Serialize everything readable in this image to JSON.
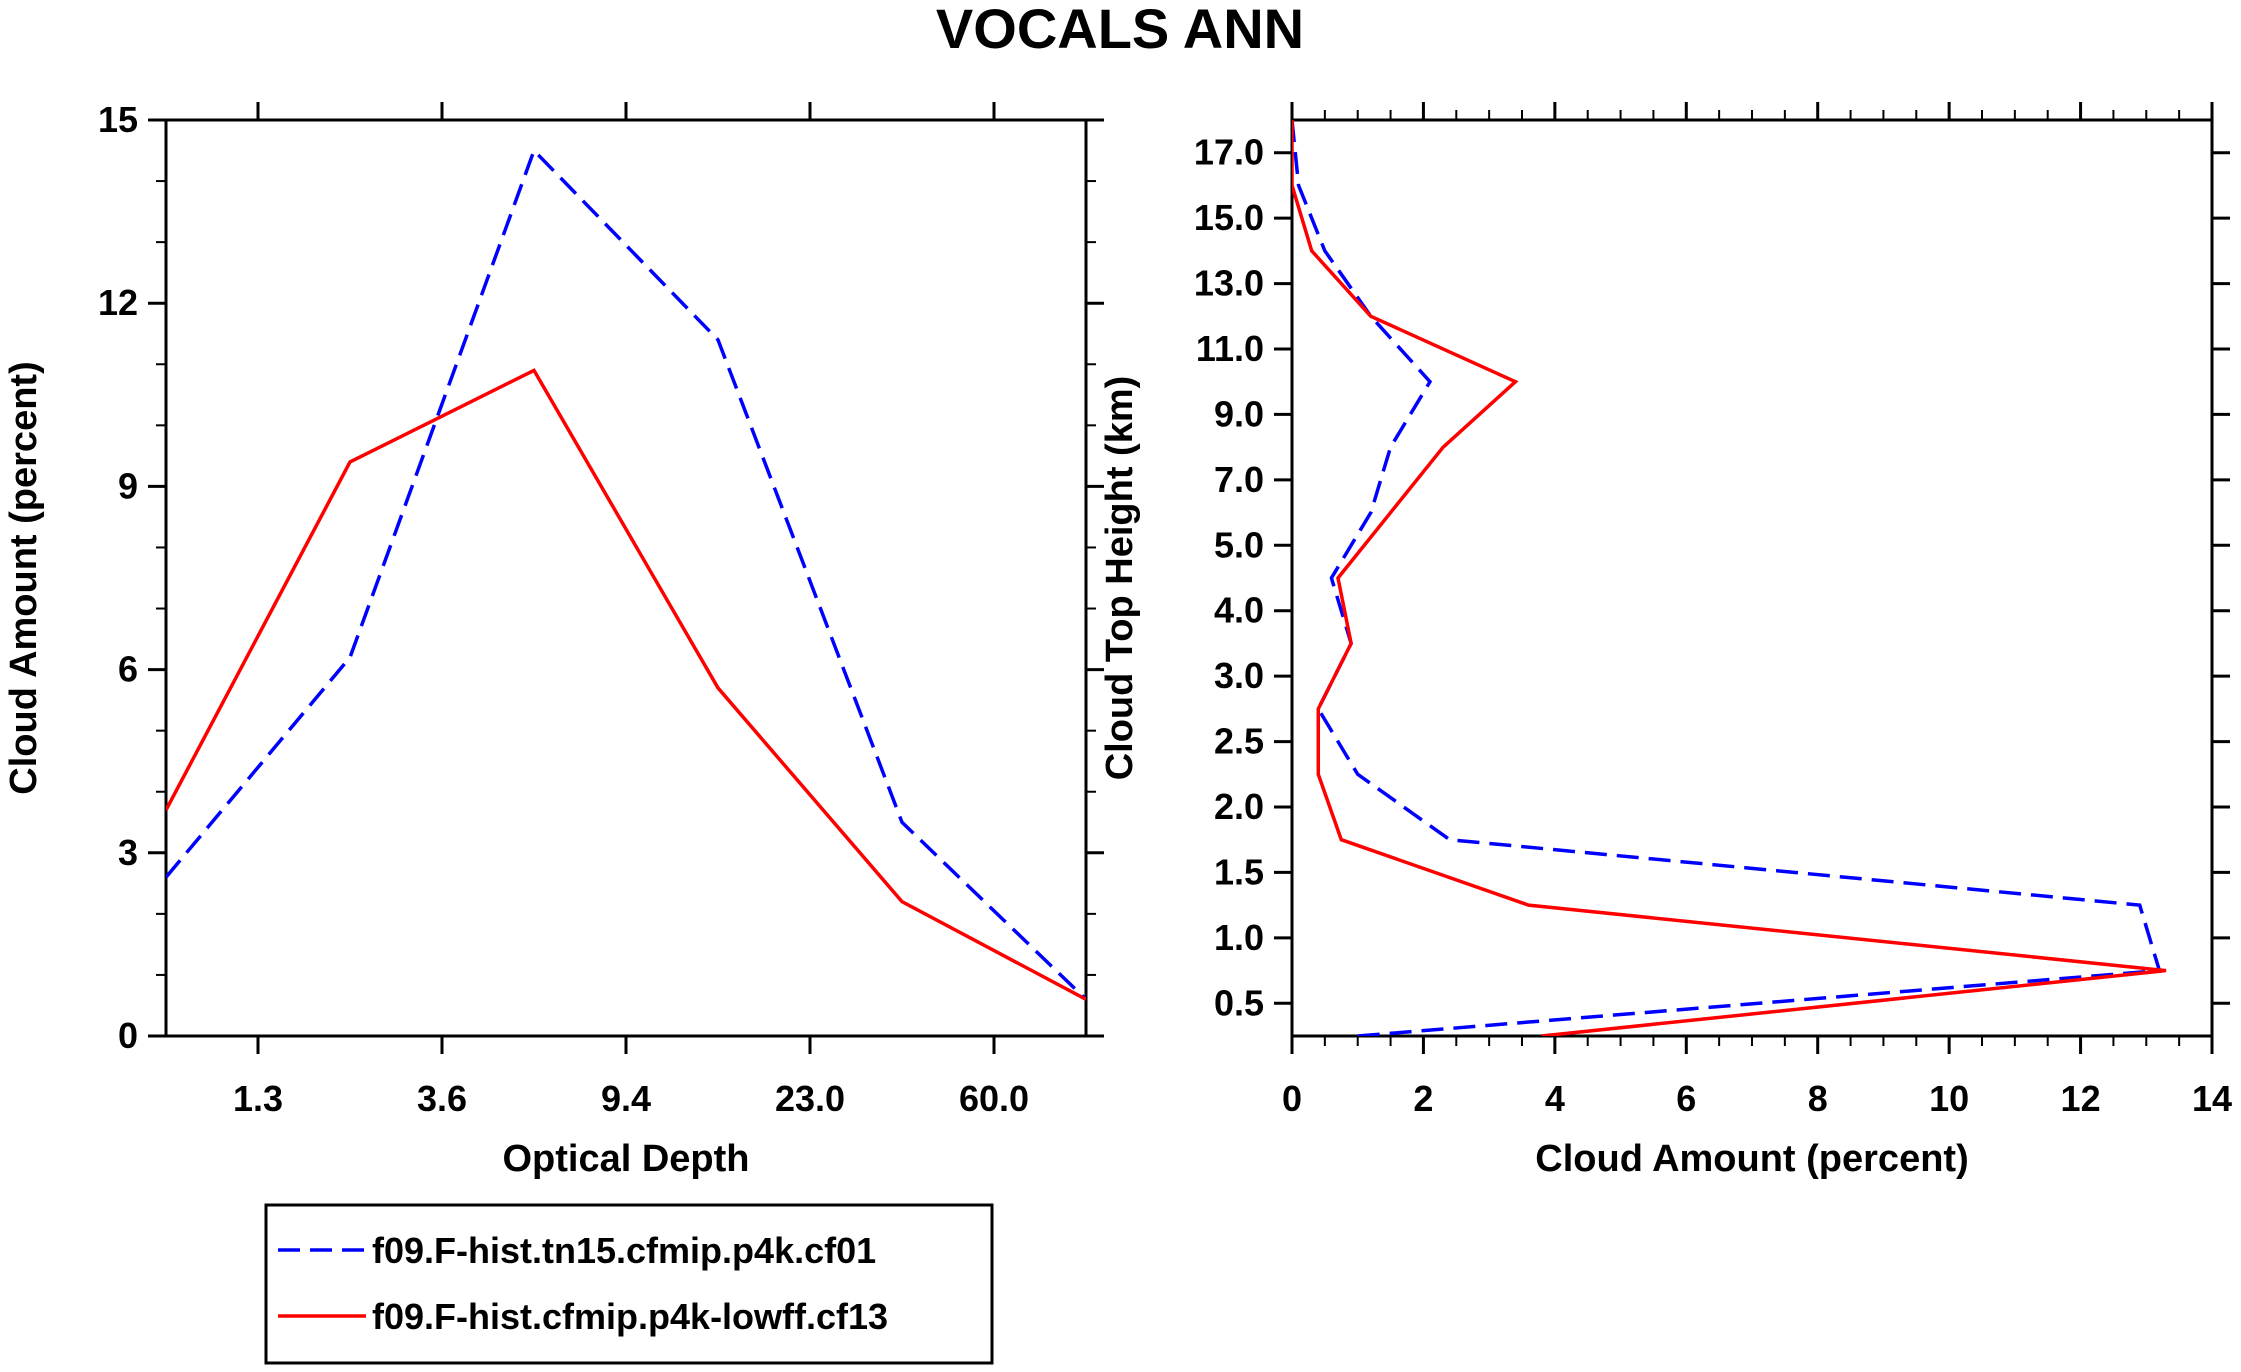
{
  "title": "VOCALS ANN",
  "colors": {
    "series1": "#0000ff",
    "series2": "#ff0000",
    "axis": "#000000"
  },
  "legend": {
    "entries": [
      {
        "label": "f09.F-hist.tn15.cfmip.p4k.cf01",
        "color": "#0000ff",
        "style": "dashed"
      },
      {
        "label": "f09.F-hist.cfmip.p4k-lowff.cf13",
        "color": "#ff0000",
        "style": "solid"
      }
    ]
  },
  "chart_data": [
    {
      "type": "line",
      "xlabel": "Optical Depth",
      "ylabel": "Cloud Amount (percent)",
      "x": [
        0,
        1,
        2,
        3,
        4,
        5
      ],
      "xlim": [
        0,
        5
      ],
      "xticks": [
        0.5,
        1.5,
        2.5,
        3.5,
        4.5
      ],
      "xtick_labels": [
        "1.3",
        "3.6",
        "9.4",
        "23.0",
        "60.0"
      ],
      "ylim": [
        0,
        15
      ],
      "yticks": [
        0,
        3,
        6,
        9,
        12,
        15
      ],
      "ytick_labels": [
        "0",
        "3",
        "6",
        "9",
        "12",
        "15"
      ],
      "series": [
        {
          "name": "f09.F-hist.tn15.cfmip.p4k.cf01",
          "style": "dashed",
          "values": [
            2.6,
            6.2,
            14.5,
            11.4,
            3.5,
            0.6
          ]
        },
        {
          "name": "f09.F-hist.cfmip.p4k-lowff.cf13",
          "style": "solid",
          "values": [
            3.7,
            9.4,
            10.9,
            5.7,
            2.2,
            0.6
          ]
        }
      ]
    },
    {
      "type": "line",
      "xlabel": "Cloud Amount (percent)",
      "ylabel": "Cloud Top Height (km)",
      "xlim": [
        0,
        14
      ],
      "xticks": [
        0,
        2,
        4,
        6,
        8,
        10,
        12,
        14
      ],
      "xtick_labels": [
        "0",
        "2",
        "4",
        "6",
        "8",
        "10",
        "12",
        "14"
      ],
      "ylim": [
        0,
        14
      ],
      "y": [
        0,
        1,
        2,
        3,
        4,
        5,
        6,
        7,
        8,
        9,
        10,
        11,
        12,
        13,
        14
      ],
      "ytick_positions": [
        0.5,
        1.5,
        2.5,
        3.5,
        4.5,
        5.5,
        6.5,
        7.5,
        8.5,
        9.5,
        10.5,
        11.5,
        12.5,
        13.5
      ],
      "ytick_labels": [
        "0.5",
        "1.0",
        "1.5",
        "2.0",
        "2.5",
        "3.0",
        "4.0",
        "5.0",
        "7.0",
        "9.0",
        "11.0",
        "13.0",
        "15.0",
        "17.0"
      ],
      "series": [
        {
          "name": "f09.F-hist.tn15.cfmip.p4k.cf01",
          "style": "dashed",
          "values": [
            1.0,
            13.2,
            12.9,
            2.4,
            1.0,
            0.4,
            0.9,
            0.6,
            1.2,
            1.5,
            2.1,
            1.2,
            0.5,
            0.1,
            0.0
          ]
        },
        {
          "name": "f09.F-hist.cfmip.p4k-lowff.cf13",
          "style": "solid",
          "values": [
            3.8,
            13.3,
            3.6,
            0.75,
            0.4,
            0.4,
            0.9,
            0.7,
            1.5,
            2.3,
            3.4,
            1.2,
            0.3,
            0.0,
            0.0
          ]
        }
      ]
    }
  ]
}
